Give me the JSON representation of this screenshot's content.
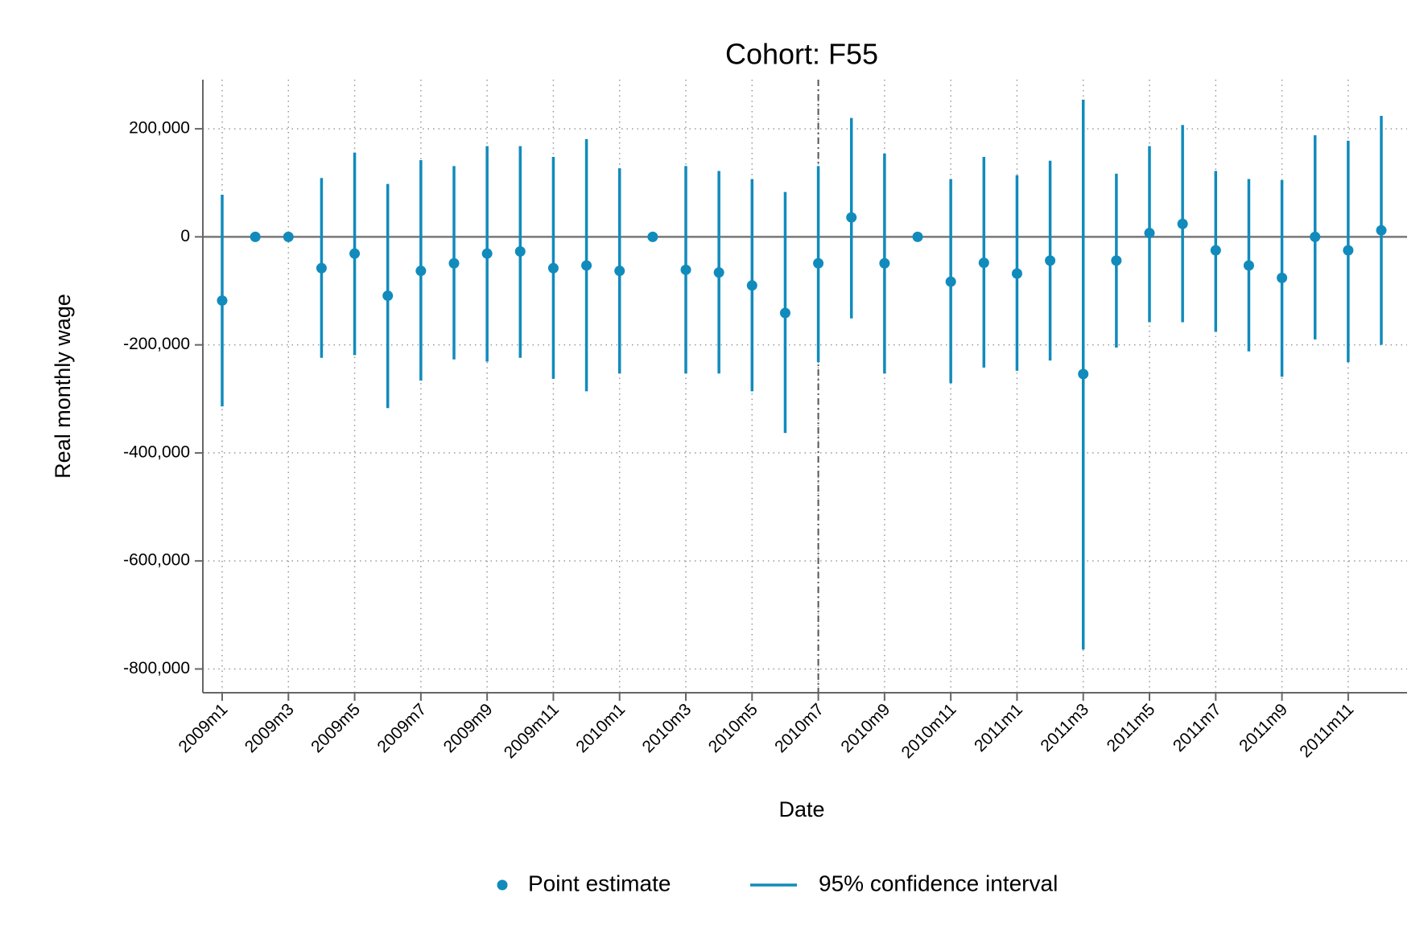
{
  "chart_data": {
    "type": "errorbar",
    "title": "Cohort: F55",
    "x_label": "Date",
    "y_label": "Real monthly wage",
    "categories": [
      "2009m1",
      null,
      "2009m3",
      null,
      "2009m5",
      null,
      "2009m7",
      null,
      "2009m9",
      null,
      "2009m11",
      null,
      "2010m1",
      null,
      "2010m3",
      null,
      "2010m5",
      null,
      "2010m7",
      null,
      "2010m9",
      null,
      "2010m11",
      null,
      "2011m1",
      null,
      "2011m3",
      null,
      "2011m5",
      null,
      "2011m7",
      null,
      "2011m9",
      null,
      "2011m11",
      null
    ],
    "vline_category": "2010m7",
    "series": [
      {
        "name": "Point estimate",
        "color": "#118bbc",
        "values": [
          -118000,
          0,
          0,
          -58000,
          -31000,
          -109000,
          -63000,
          -49000,
          -31000,
          -27000,
          -58000,
          -53000,
          -63000,
          0,
          -61000,
          -66000,
          -90000,
          -141000,
          -49000,
          36000,
          -49000,
          0,
          -83000,
          -48000,
          -68000,
          -44000,
          -254000,
          -44000,
          7000,
          24000,
          -25000,
          -53000,
          -76000,
          0,
          -25000,
          12000
        ]
      },
      {
        "name": "95% confidence interval",
        "color": "#118bbc",
        "lower": [
          -314000,
          null,
          null,
          -224000,
          -219000,
          -317000,
          -266000,
          -227000,
          -231000,
          -224000,
          -263000,
          -286000,
          -253000,
          null,
          -253000,
          -253000,
          -286000,
          -363000,
          -232000,
          -151000,
          -253000,
          null,
          -271000,
          -242000,
          -248000,
          -229000,
          -764000,
          -205000,
          -158000,
          -158000,
          -176000,
          -212000,
          -259000,
          -190000,
          -232000,
          -200000
        ],
        "upper": [
          78000,
          null,
          null,
          109000,
          156000,
          98000,
          142000,
          131000,
          168000,
          168000,
          148000,
          181000,
          127000,
          null,
          131000,
          122000,
          107000,
          83000,
          131000,
          220000,
          154000,
          null,
          107000,
          148000,
          114000,
          141000,
          254000,
          117000,
          168000,
          207000,
          122000,
          107000,
          105000,
          188000,
          178000,
          224000
        ]
      }
    ],
    "ylim": [
      -844000,
      291000
    ],
    "yticks": [
      {
        "value": -800000,
        "label": "-800,000"
      },
      {
        "value": -600000,
        "label": "-600,000"
      },
      {
        "value": -400000,
        "label": "-400,000"
      },
      {
        "value": -200000,
        "label": "-200,000"
      },
      0,
      {
        "value": 200000,
        "label": "200,000"
      }
    ],
    "grid": true
  }
}
